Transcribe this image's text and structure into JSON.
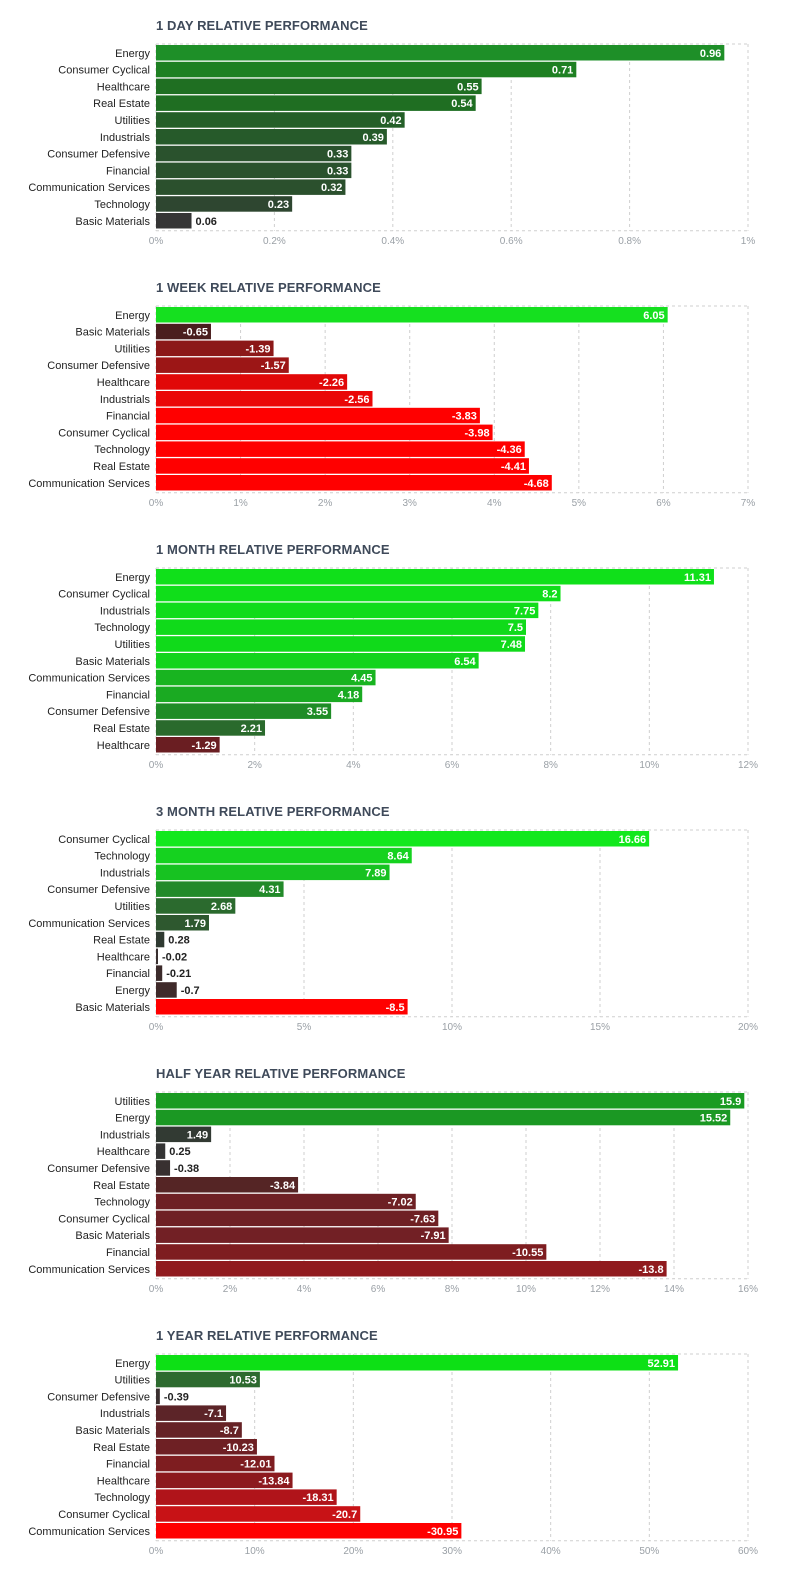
{
  "chart_data": [
    {
      "type": "bar",
      "orientation": "horizontal",
      "title": "1 DAY RELATIVE PERFORMANCE",
      "categories": [
        "Energy",
        "Consumer Cyclical",
        "Healthcare",
        "Real Estate",
        "Utilities",
        "Industrials",
        "Consumer Defensive",
        "Financial",
        "Communication Services",
        "Technology",
        "Basic Materials"
      ],
      "values": [
        0.96,
        0.71,
        0.55,
        0.54,
        0.42,
        0.39,
        0.33,
        0.33,
        0.32,
        0.23,
        0.06
      ],
      "value_labels": [
        "0.96",
        "0.71",
        "0.55",
        "0.54",
        "0.42",
        "0.39",
        "0.33",
        "0.33",
        "0.32",
        "0.23",
        "0.06"
      ],
      "colors": [
        "#1e8f28",
        "#1e8022",
        "#1f6f22",
        "#1f6e22",
        "#245f28",
        "#265a2a",
        "#2a522d",
        "#2a522d",
        "#2b502d",
        "#2e4630",
        "#353535"
      ],
      "xlim": [
        0,
        1
      ],
      "ticks": [
        0,
        0.2,
        0.4,
        0.6,
        0.8,
        1
      ],
      "tick_labels": [
        "0%",
        "0.2%",
        "0.4%",
        "0.6%",
        "0.8%",
        "1%"
      ],
      "xlabel": "",
      "ylabel": "",
      "grid": true
    },
    {
      "type": "bar",
      "orientation": "horizontal",
      "title": "1 WEEK RELATIVE PERFORMANCE",
      "categories": [
        "Energy",
        "Basic Materials",
        "Utilities",
        "Consumer Defensive",
        "Healthcare",
        "Industrials",
        "Financial",
        "Consumer Cyclical",
        "Technology",
        "Real Estate",
        "Communication Services"
      ],
      "values": [
        6.05,
        -0.65,
        -1.39,
        -1.57,
        -2.26,
        -2.56,
        -3.83,
        -3.98,
        -4.36,
        -4.41,
        -4.68
      ],
      "value_labels": [
        "6.05",
        "-0.65",
        "-1.39",
        "-1.57",
        "-2.26",
        "-2.56",
        "-3.83",
        "-3.98",
        "-4.36",
        "-4.41",
        "-4.68"
      ],
      "colors": [
        "#15e01f",
        "#4a1e1e",
        "#8c1818",
        "#9c1616",
        "#e10808",
        "#ea0707",
        "#ff0000",
        "#ff0000",
        "#ff0000",
        "#ff0000",
        "#ff0000"
      ],
      "xlim": [
        0,
        7
      ],
      "ticks": [
        0,
        1,
        2,
        3,
        4,
        5,
        6,
        7
      ],
      "tick_labels": [
        "0%",
        "1%",
        "2%",
        "3%",
        "4%",
        "5%",
        "6%",
        "7%"
      ],
      "xlabel": "",
      "ylabel": "",
      "grid": true
    },
    {
      "type": "bar",
      "orientation": "horizontal",
      "title": "1 MONTH RELATIVE PERFORMANCE",
      "categories": [
        "Energy",
        "Consumer Cyclical",
        "Industrials",
        "Technology",
        "Utilities",
        "Basic Materials",
        "Communication Services",
        "Financial",
        "Consumer Defensive",
        "Real Estate",
        "Healthcare"
      ],
      "values": [
        11.31,
        8.2,
        7.75,
        7.5,
        7.48,
        6.54,
        4.45,
        4.18,
        3.55,
        2.21,
        -1.29
      ],
      "value_labels": [
        "11.31",
        "8.2",
        "7.75",
        "7.5",
        "7.48",
        "6.54",
        "4.45",
        "4.18",
        "3.55",
        "2.21",
        "-1.29"
      ],
      "colors": [
        "#10e01a",
        "#10de1a",
        "#10dc1a",
        "#10da1a",
        "#10da1a",
        "#12d41c",
        "#18b420",
        "#1aaa22",
        "#1f8c26",
        "#2a6a2c",
        "#6a1e22"
      ],
      "xlim": [
        0,
        12
      ],
      "ticks": [
        0,
        2,
        4,
        6,
        8,
        10,
        12
      ],
      "tick_labels": [
        "0%",
        "2%",
        "4%",
        "6%",
        "8%",
        "10%",
        "12%"
      ],
      "xlabel": "",
      "ylabel": "",
      "grid": true
    },
    {
      "type": "bar",
      "orientation": "horizontal",
      "title": "3 MONTH RELATIVE PERFORMANCE",
      "categories": [
        "Consumer Cyclical",
        "Technology",
        "Industrials",
        "Consumer Defensive",
        "Utilities",
        "Communication Services",
        "Real Estate",
        "Healthcare",
        "Financial",
        "Energy",
        "Basic Materials"
      ],
      "values": [
        16.66,
        8.64,
        7.89,
        4.31,
        2.68,
        1.79,
        0.28,
        -0.02,
        -0.21,
        -0.7,
        -8.5
      ],
      "value_labels": [
        "16.66",
        "8.64",
        "7.89",
        "4.31",
        "2.68",
        "1.79",
        "0.28",
        "-0.02",
        "-0.21",
        "-0.7",
        "-8.5"
      ],
      "colors": [
        "#12e81d",
        "#15d21f",
        "#17c221",
        "#228a29",
        "#2b6a2e",
        "#2e582f",
        "#2f3a31",
        "#3a3030",
        "#3c2b2b",
        "#3f2a2a",
        "#ff0000"
      ],
      "xlim": [
        0,
        20
      ],
      "ticks": [
        0,
        5,
        10,
        15,
        20
      ],
      "tick_labels": [
        "0%",
        "5%",
        "10%",
        "15%",
        "20%"
      ],
      "xlabel": "",
      "ylabel": "",
      "grid": true
    },
    {
      "type": "bar",
      "orientation": "horizontal",
      "title": "HALF YEAR RELATIVE PERFORMANCE",
      "categories": [
        "Utilities",
        "Energy",
        "Industrials",
        "Healthcare",
        "Consumer Defensive",
        "Real Estate",
        "Technology",
        "Consumer Cyclical",
        "Basic Materials",
        "Financial",
        "Communication Services"
      ],
      "values": [
        15.9,
        15.52,
        1.49,
        0.25,
        -0.38,
        -3.84,
        -7.02,
        -7.63,
        -7.91,
        -10.55,
        -13.8
      ],
      "value_labels": [
        "15.9",
        "15.52",
        "1.49",
        "0.25",
        "-0.38",
        "-3.84",
        "-7.02",
        "-7.63",
        "-7.91",
        "-10.55",
        "-13.8"
      ],
      "colors": [
        "#1a9b22",
        "#1b9823",
        "#323a33",
        "#343434",
        "#383030",
        "#552525",
        "#6e2024",
        "#6f2024",
        "#722025",
        "#7e1d20",
        "#901a1e"
      ],
      "xlim": [
        0,
        16
      ],
      "ticks": [
        0,
        2,
        4,
        6,
        8,
        10,
        12,
        14,
        16
      ],
      "tick_labels": [
        "0%",
        "2%",
        "4%",
        "6%",
        "8%",
        "10%",
        "12%",
        "14%",
        "16%"
      ],
      "xlabel": "",
      "ylabel": "",
      "grid": true
    },
    {
      "type": "bar",
      "orientation": "horizontal",
      "title": "1 YEAR RELATIVE PERFORMANCE",
      "categories": [
        "Energy",
        "Utilities",
        "Consumer Defensive",
        "Industrials",
        "Basic Materials",
        "Real Estate",
        "Financial",
        "Healthcare",
        "Technology",
        "Consumer Cyclical",
        "Communication Services"
      ],
      "values": [
        52.91,
        10.53,
        -0.39,
        -7.1,
        -8.7,
        -10.23,
        -12.01,
        -13.84,
        -18.31,
        -20.7,
        -30.95
      ],
      "value_labels": [
        "52.91",
        "10.53",
        "-0.39",
        "-7.1",
        "-8.7",
        "-10.23",
        "-12.01",
        "-13.84",
        "-18.31",
        "-20.7",
        "-30.95"
      ],
      "colors": [
        "#0de015",
        "#2d6a2f",
        "#3a3030",
        "#5c2428",
        "#662226",
        "#6e2024",
        "#7e1d20",
        "#8c1a1e",
        "#b0141a",
        "#c81216",
        "#ff0000"
      ],
      "xlim": [
        0,
        60
      ],
      "ticks": [
        0,
        10,
        20,
        30,
        40,
        50,
        60
      ],
      "tick_labels": [
        "0%",
        "10%",
        "20%",
        "30%",
        "40%",
        "50%",
        "60%"
      ],
      "xlabel": "",
      "ylabel": "",
      "grid": true
    }
  ]
}
